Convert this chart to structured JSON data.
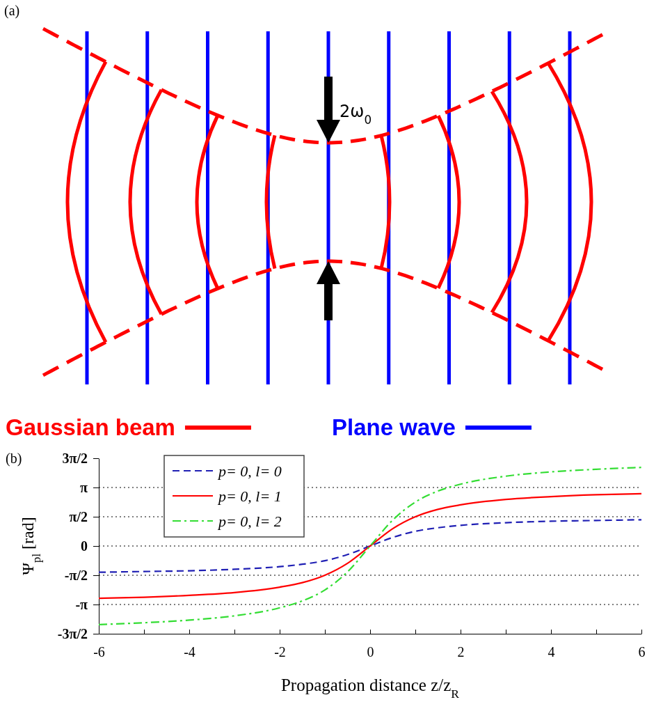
{
  "chart_data": [
    {
      "type": "other",
      "annotations": [
        "(a)",
        "2ω$_{0}$"
      ],
      "series": [
        {
          "name": "Gaussian beam",
          "color": "#ff0000"
        },
        {
          "name": "Plane wave",
          "color": "#0000ff"
        }
      ]
    },
    {
      "type": "line",
      "annotations": [
        "(b)"
      ],
      "xlabel": "Propagation distance z/z$_{R}$",
      "ylabel": "Ψ$_{pl}$ [rad]",
      "x": [
        -6,
        -5,
        -4,
        -3,
        -2,
        -1.5,
        -1,
        -0.5,
        0,
        0.5,
        1,
        1.5,
        2,
        3,
        4,
        5,
        6
      ],
      "xlim": [
        -6,
        6
      ],
      "xticks": [
        -6,
        {
          "value": -5,
          "label": null
        },
        -4,
        {
          "value": -3,
          "label": null
        },
        -2,
        {
          "value": -1,
          "label": null
        },
        0,
        {
          "value": 1,
          "label": null
        },
        2,
        {
          "value": 3,
          "label": null
        },
        4,
        {
          "value": 5,
          "label": null
        },
        6
      ],
      "ylim": [
        -4.712,
        4.712
      ],
      "yticks": [
        {
          "value": -4.712,
          "label": "-3π/2"
        },
        {
          "value": -3.142,
          "label": "-π"
        },
        {
          "value": -1.571,
          "label": "-π/2"
        },
        0,
        {
          "value": 1.571,
          "label": "π/2"
        },
        {
          "value": 3.142,
          "label": "π"
        },
        {
          "value": 4.712,
          "label": "3π/2"
        }
      ],
      "grid": "y",
      "legend": "top left",
      "marker": "none",
      "series": [
        {
          "name": "p= 0, l= 0",
          "color": "#1f1fb4",
          "line_style": "dashed",
          "values": [
            -1.41,
            -1.37,
            -1.33,
            -1.25,
            -1.11,
            -0.98,
            -0.79,
            -0.46,
            0,
            0.46,
            0.79,
            0.98,
            1.11,
            1.25,
            1.33,
            1.37,
            1.41
          ]
        },
        {
          "name": "p= 0, l= 1",
          "color": "#ff0000",
          "line_style": "solid",
          "values": [
            -2.81,
            -2.75,
            -2.65,
            -2.5,
            -2.21,
            -1.97,
            -1.57,
            -0.93,
            0,
            0.93,
            1.57,
            1.97,
            2.21,
            2.5,
            2.65,
            2.75,
            2.81
          ]
        },
        {
          "name": "p= 0, l= 2",
          "color": "#33dd33",
          "line_style": "dashdot",
          "values": [
            -4.22,
            -4.12,
            -3.98,
            -3.75,
            -3.32,
            -2.95,
            -2.36,
            -1.39,
            0,
            1.39,
            2.36,
            2.95,
            3.32,
            3.75,
            3.98,
            4.12,
            4.22
          ]
        }
      ]
    }
  ]
}
